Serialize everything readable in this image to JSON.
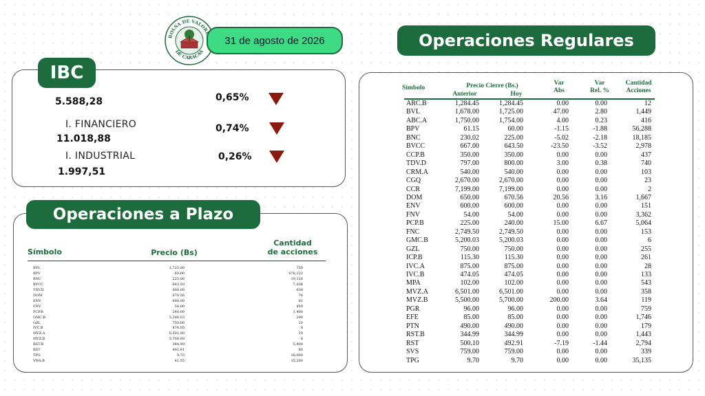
{
  "header": {
    "logo_text_top": "BOLSA DE VALORES",
    "logo_text_bottom": "DE CARACAS",
    "date": "31 de agosto de 2026"
  },
  "ibc": {
    "title": "IBC",
    "main_value": "5.588,28",
    "main_change": "0,65%",
    "financiero_label": "I. FINANCIERO",
    "financiero_value": "11.018,88",
    "financiero_change": "0,74%",
    "industrial_label": "I. INDUSTRIAL",
    "industrial_value": "1.997,51",
    "industrial_change": "0,26%"
  },
  "plazo": {
    "title": "Operaciones a Plazo",
    "col_symbol": "Símbolo",
    "col_price": "Precio (Bs)",
    "col_qty_1": "Cantidad",
    "col_qty_2": "de acciones",
    "rows": [
      {
        "sym": "BVL",
        "price": "1,725.00",
        "qty": "750"
      },
      {
        "sym": "BPV",
        "price": "60.00",
        "qty": "678,123"
      },
      {
        "sym": "BNC",
        "price": "225.00",
        "qty": "19,116"
      },
      {
        "sym": "BVCC",
        "price": "643.50",
        "qty": "7,034"
      },
      {
        "sym": "TDV.D",
        "price": "800.00",
        "qty": "630"
      },
      {
        "sym": "DOM",
        "price": "670.56",
        "qty": "76"
      },
      {
        "sym": "ENV",
        "price": "600.00",
        "qty": "62"
      },
      {
        "sym": "FNV",
        "price": "54.00",
        "qty": "450"
      },
      {
        "sym": "PCP.B",
        "price": "240.00",
        "qty": "1,400"
      },
      {
        "sym": "GMC.B",
        "price": "5,200.03",
        "qty": "290"
      },
      {
        "sym": "GZL",
        "price": "750.00",
        "qty": "10"
      },
      {
        "sym": "IVC.B",
        "price": "474.05",
        "qty": "8"
      },
      {
        "sym": "MVZ.A",
        "price": "6,501.00",
        "qty": "10"
      },
      {
        "sym": "MVZ.B",
        "price": "5,700.00",
        "qty": "8"
      },
      {
        "sym": "RST.B",
        "price": "344.99",
        "qty": "5,400"
      },
      {
        "sym": "RST",
        "price": "492.91",
        "qty": "80"
      },
      {
        "sym": "TPG",
        "price": "9.70",
        "qty": "16,000"
      },
      {
        "sym": "VNA.B",
        "price": "41.55",
        "qty": "15,200"
      }
    ]
  },
  "regulares": {
    "title": "Operaciones Regulares",
    "col_symbol": "Símbolo",
    "col_price_group": "Precio Cierre (Bs.)",
    "col_prev": "Anterior",
    "col_today": "Hoy",
    "col_var_abs_1": "Var",
    "col_var_abs_2": "Abs",
    "col_var_rel_1": "Var",
    "col_var_rel_2": "Rel. %",
    "col_qty_1": "Cantidad",
    "col_qty_2": "Acciones",
    "rows": [
      {
        "sym": "ARC.B",
        "prev": "1,284.45",
        "today": "1,284.45",
        "abs": "0.00",
        "rel": "0.00",
        "qty": "12"
      },
      {
        "sym": "BVL",
        "prev": "1,678.00",
        "today": "1,725.00",
        "abs": "47.00",
        "rel": "2.80",
        "qty": "1,449"
      },
      {
        "sym": "ABC.A",
        "prev": "1,750.00",
        "today": "1,754.00",
        "abs": "4.00",
        "rel": "0.23",
        "qty": "416"
      },
      {
        "sym": "BPV",
        "prev": "61.15",
        "today": "60.00",
        "abs": "-1.15",
        "rel": "-1.88",
        "qty": "56,288"
      },
      {
        "sym": "BNC",
        "prev": "230.02",
        "today": "225.00",
        "abs": "-5.02",
        "rel": "-2.18",
        "qty": "18,185"
      },
      {
        "sym": "BVCC",
        "prev": "667.00",
        "today": "643.50",
        "abs": "-23.50",
        "rel": "-3.52",
        "qty": "2,978"
      },
      {
        "sym": "CCP.B",
        "prev": "350.00",
        "today": "350.00",
        "abs": "0.00",
        "rel": "0.00",
        "qty": "437"
      },
      {
        "sym": "TDV.D",
        "prev": "797.00",
        "today": "800.00",
        "abs": "3.00",
        "rel": "0.38",
        "qty": "740"
      },
      {
        "sym": "CRM.A",
        "prev": "540.00",
        "today": "540.00",
        "abs": "0.00",
        "rel": "0.00",
        "qty": "103"
      },
      {
        "sym": "CGQ",
        "prev": "2,670.00",
        "today": "2,670.00",
        "abs": "0.00",
        "rel": "0.00",
        "qty": "23"
      },
      {
        "sym": "CCR",
        "prev": "7,199.00",
        "today": "7,199.00",
        "abs": "0.00",
        "rel": "0.00",
        "qty": "2"
      },
      {
        "sym": "DOM",
        "prev": "650.00",
        "today": "670.56",
        "abs": "20.56",
        "rel": "3.16",
        "qty": "1,667"
      },
      {
        "sym": "ENV",
        "prev": "600.00",
        "today": "600.00",
        "abs": "0.00",
        "rel": "0.00",
        "qty": "151"
      },
      {
        "sym": "FNV",
        "prev": "54.00",
        "today": "54.00",
        "abs": "0.00",
        "rel": "0.00",
        "qty": "3,362"
      },
      {
        "sym": "PCP.B",
        "prev": "225.00",
        "today": "240.00",
        "abs": "15.00",
        "rel": "6.67",
        "qty": "5,064"
      },
      {
        "sym": "FNC",
        "prev": "2,749.50",
        "today": "2,749.50",
        "abs": "0.00",
        "rel": "0.00",
        "qty": "153"
      },
      {
        "sym": "GMC.B",
        "prev": "5,200.03",
        "today": "5,200.03",
        "abs": "0.00",
        "rel": "0.00",
        "qty": "6"
      },
      {
        "sym": "GZL",
        "prev": "750.00",
        "today": "750.00",
        "abs": "0.00",
        "rel": "0.00",
        "qty": "255"
      },
      {
        "sym": "ICP.B",
        "prev": "115.30",
        "today": "115.30",
        "abs": "0.00",
        "rel": "0.00",
        "qty": "261"
      },
      {
        "sym": "IVC.A",
        "prev": "875.00",
        "today": "875.00",
        "abs": "0.00",
        "rel": "0.00",
        "qty": "28"
      },
      {
        "sym": "IVC.B",
        "prev": "474.05",
        "today": "474.05",
        "abs": "0.00",
        "rel": "0.00",
        "qty": "133"
      },
      {
        "sym": "MPA",
        "prev": "102.00",
        "today": "102.00",
        "abs": "0.00",
        "rel": "0.00",
        "qty": "543"
      },
      {
        "sym": "MVZ.A",
        "prev": "6,501.00",
        "today": "6,501.00",
        "abs": "0.00",
        "rel": "0.00",
        "qty": "358"
      },
      {
        "sym": "MVZ.B",
        "prev": "5,500.00",
        "today": "5,700.00",
        "abs": "200.00",
        "rel": "3.64",
        "qty": "119"
      },
      {
        "sym": "PGR",
        "prev": "96.00",
        "today": "96.00",
        "abs": "0.00",
        "rel": "0.00",
        "qty": "759"
      },
      {
        "sym": "EFE",
        "prev": "85.00",
        "today": "85.00",
        "abs": "0.00",
        "rel": "0.00",
        "qty": "1,746"
      },
      {
        "sym": "PTN",
        "prev": "490.00",
        "today": "490.00",
        "abs": "0.00",
        "rel": "0.00",
        "qty": "179"
      },
      {
        "sym": "RST.B",
        "prev": "344.99",
        "today": "344.99",
        "abs": "0.00",
        "rel": "0.00",
        "qty": "1,443"
      },
      {
        "sym": "RST",
        "prev": "500.10",
        "today": "492.91",
        "abs": "-7.19",
        "rel": "-1.44",
        "qty": "2,794"
      },
      {
        "sym": "SVS",
        "prev": "759.00",
        "today": "759.00",
        "abs": "0.00",
        "rel": "0.00",
        "qty": "339"
      },
      {
        "sym": "TPG",
        "prev": "9.70",
        "today": "9.70",
        "abs": "0.00",
        "rel": "0.00",
        "qty": "35,135"
      }
    ]
  },
  "colors": {
    "brand_green": "#1c6b3c",
    "date_green": "#3ddc84",
    "down_arrow": "#8b1a0e"
  },
  "icons": {
    "logo": "bolsa-de-valores-seal-icon",
    "change_indicator": "triangle-down-icon"
  }
}
